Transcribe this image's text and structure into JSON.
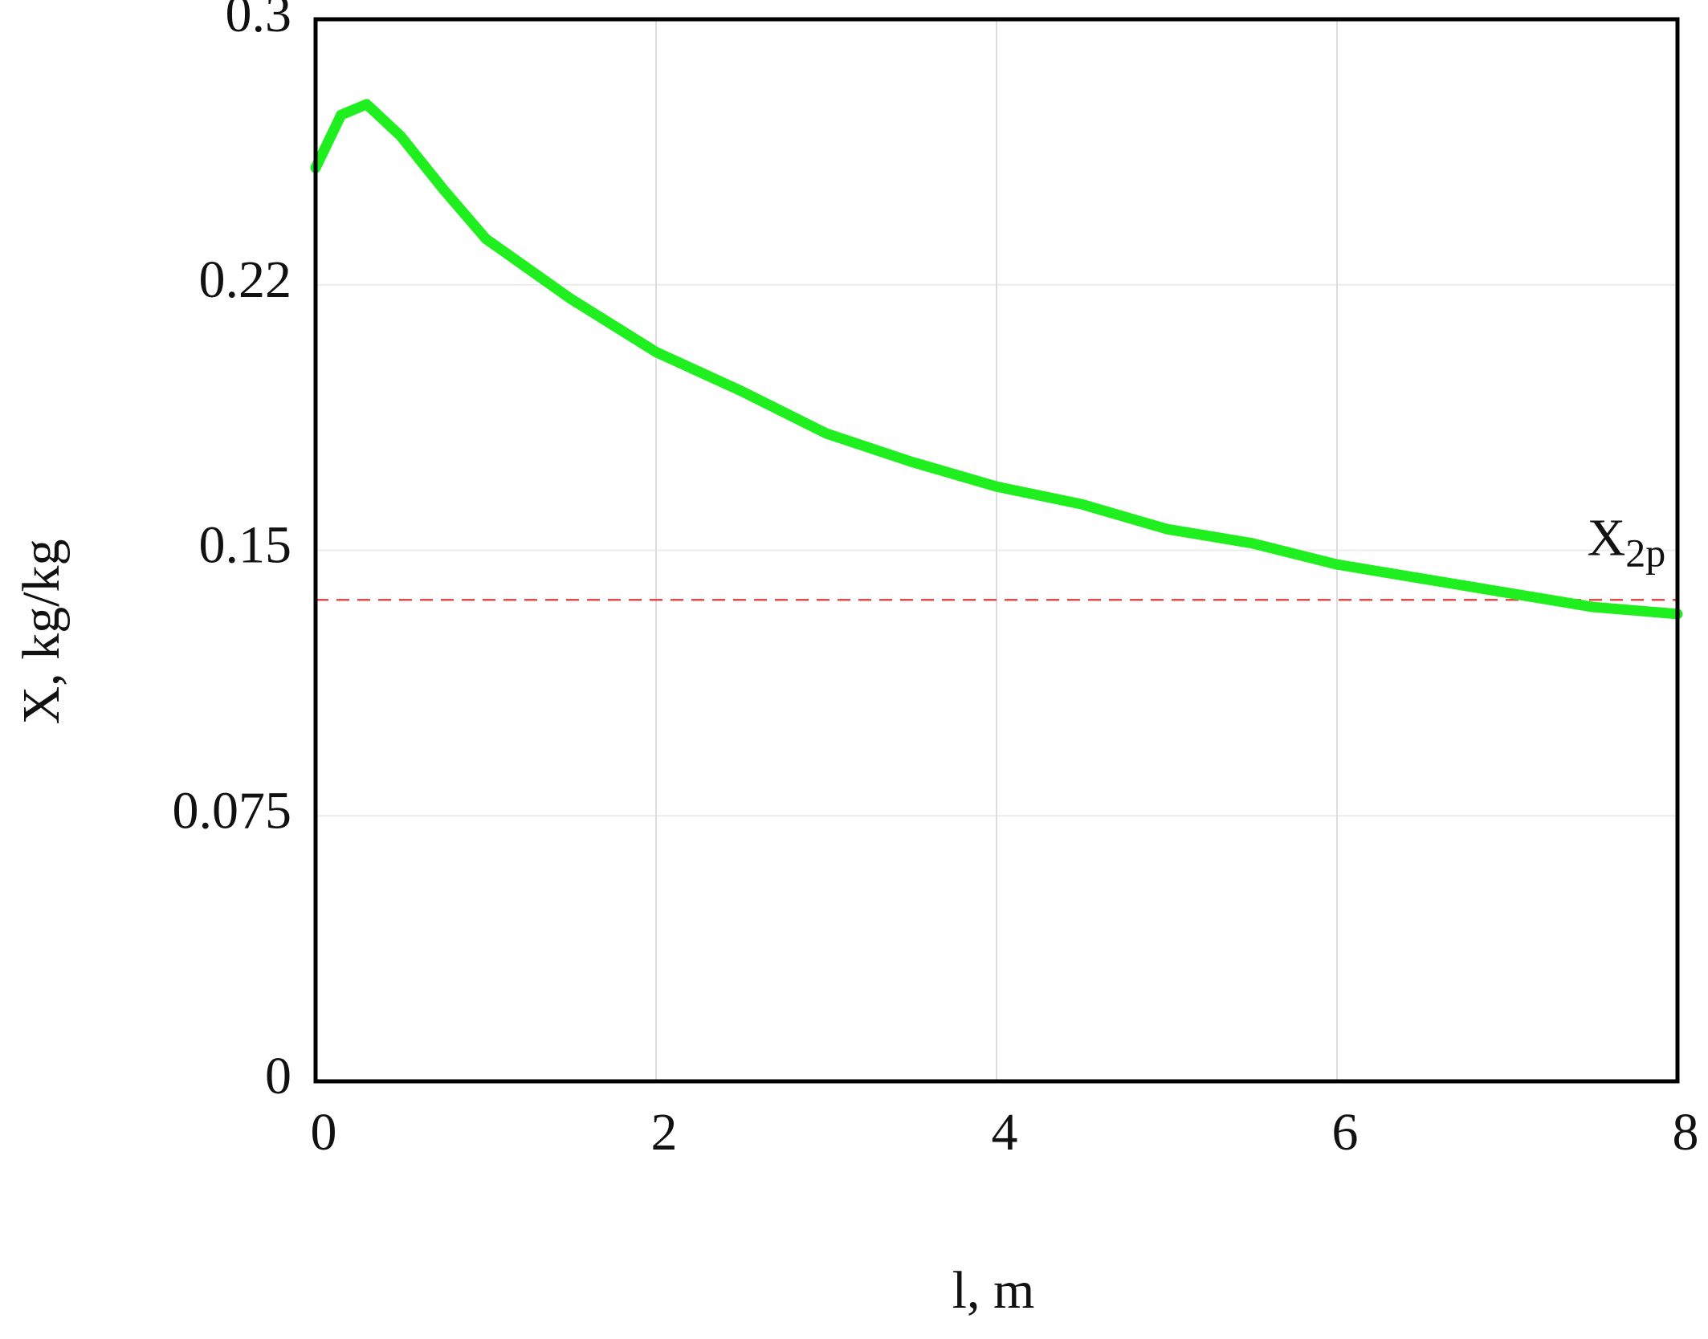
{
  "chart_data": {
    "type": "line",
    "xlabel": "l, m",
    "ylabel": "X, kg/kg",
    "x": [
      0,
      0.15,
      0.3,
      0.5,
      0.75,
      1,
      1.5,
      2,
      2.5,
      3,
      3.5,
      4,
      4.5,
      5,
      5.5,
      6,
      6.5,
      7,
      7.5,
      8
    ],
    "series": [
      {
        "color": "#1fef1f",
        "values": [
          0.258,
          0.273,
          0.276,
          0.267,
          0.252,
          0.238,
          0.221,
          0.206,
          0.195,
          0.183,
          0.175,
          0.168,
          0.163,
          0.156,
          0.152,
          0.146,
          0.142,
          0.138,
          0.134,
          0.132
        ]
      }
    ],
    "xlim": [
      0,
      8
    ],
    "xticks": [
      0,
      2,
      4,
      6,
      8
    ],
    "ylim": [
      0,
      0.3
    ],
    "yticks": [
      0,
      {
        "value": 0.075,
        "label": "0.075"
      },
      0.15,
      {
        "value": 0.225,
        "label": "0.22"
      },
      0.3
    ],
    "grid": true,
    "reference_line": {
      "value": 0.136,
      "color": "#e04a4a",
      "dashed": true
    },
    "annotation": {
      "text": "X",
      "subscript": "2p",
      "x": 7.7,
      "y": 0.152
    }
  }
}
